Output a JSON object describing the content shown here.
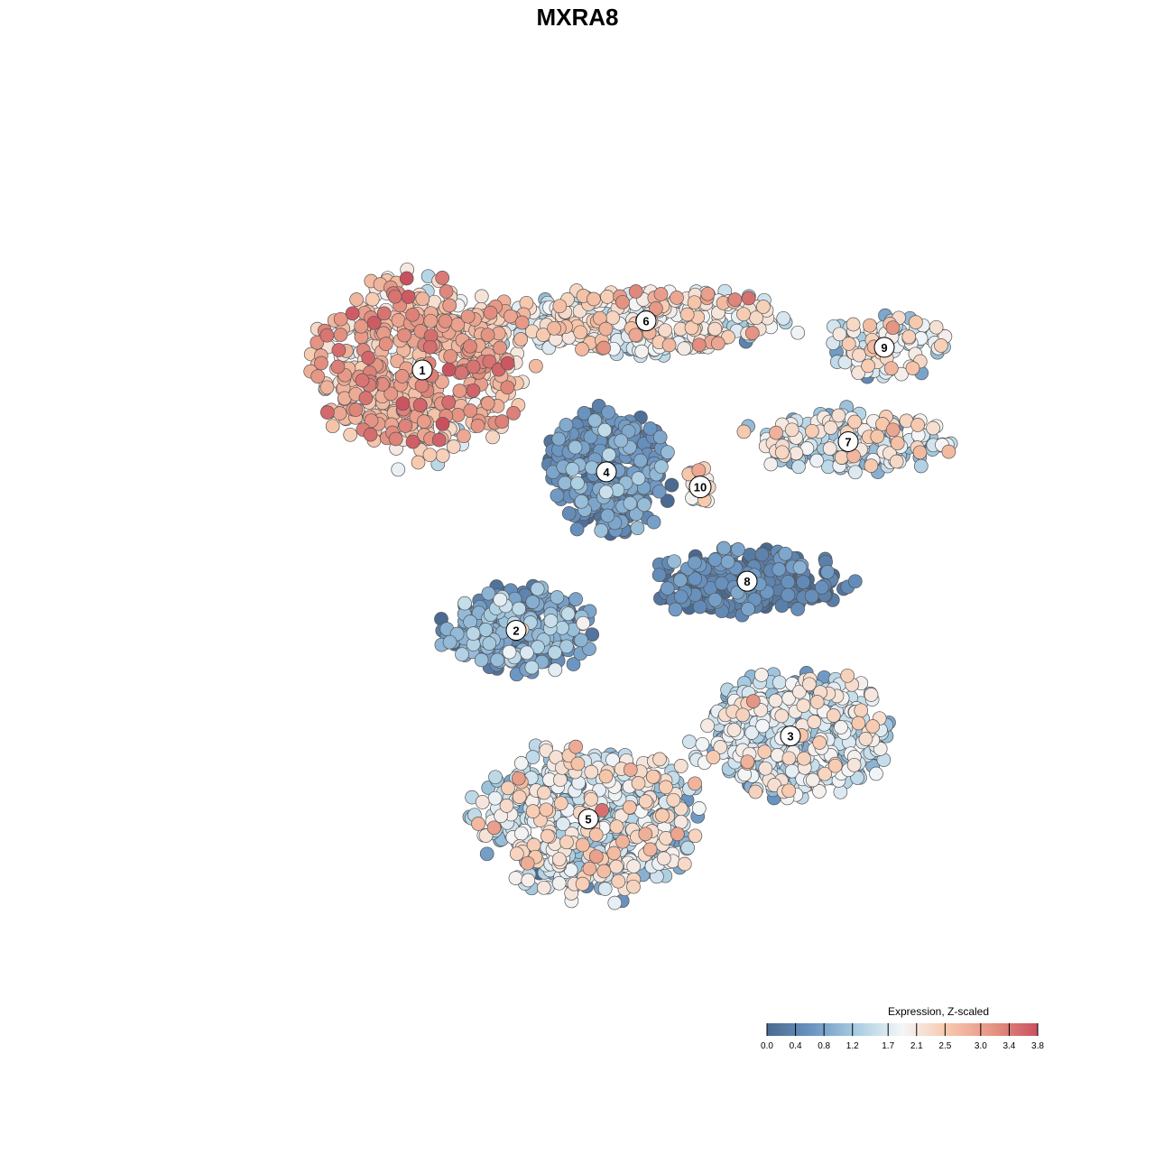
{
  "chart_data": {
    "type": "scatter",
    "title": "MXRA8",
    "xlabel": "",
    "ylabel": "",
    "grid": false,
    "axes_visible": false,
    "point_outline": "#555555",
    "color_scale": {
      "title": "Expression, Z-scaled",
      "min": 0.0,
      "max": 3.8,
      "ticks": [
        0.0,
        0.4,
        0.8,
        1.2,
        1.7,
        2.1,
        2.5,
        3.0,
        3.4,
        3.8
      ],
      "tick_labels": [
        "0.0",
        "0.4",
        "0.8",
        "1.2",
        "1.7",
        "2.1",
        "2.5",
        "3.0",
        "3.4",
        "3.8"
      ],
      "stops": [
        "#4a6a91",
        "#6b95c2",
        "#a9cee2",
        "#f4f6f8",
        "#f7c8ac",
        "#e59483",
        "#c9515f"
      ],
      "placement": "bottom-right"
    },
    "clusters": [
      {
        "label": "1",
        "x": -2.4,
        "y": 2.75,
        "rx": 1.45,
        "ry": 1.2,
        "n": 520,
        "mean": 2.6,
        "sd": 0.55
      },
      {
        "label": "2",
        "x": -1.1,
        "y": -0.7,
        "rx": 1.1,
        "ry": 0.55,
        "n": 260,
        "mean": 0.7,
        "sd": 0.45
      },
      {
        "label": "3",
        "x": 2.7,
        "y": -2.1,
        "rx": 1.3,
        "ry": 0.85,
        "n": 420,
        "mean": 1.5,
        "sd": 0.5
      },
      {
        "label": "4",
        "x": 0.15,
        "y": 1.4,
        "rx": 0.85,
        "ry": 0.8,
        "n": 330,
        "mean": 0.45,
        "sd": 0.35
      },
      {
        "label": "5",
        "x": -0.1,
        "y": -3.2,
        "rx": 1.5,
        "ry": 1.0,
        "n": 560,
        "mean": 1.6,
        "sd": 0.6
      },
      {
        "label": "6",
        "x": 0.7,
        "y": 3.4,
        "rx": 2.0,
        "ry": 0.45,
        "n": 330,
        "mean": 1.9,
        "sd": 0.55
      },
      {
        "label": "7",
        "x": 3.5,
        "y": 1.8,
        "rx": 1.4,
        "ry": 0.4,
        "n": 200,
        "mean": 1.6,
        "sd": 0.55
      },
      {
        "label": "8",
        "x": 2.1,
        "y": -0.05,
        "rx": 1.35,
        "ry": 0.45,
        "n": 260,
        "mean": 0.3,
        "sd": 0.3
      },
      {
        "label": "9",
        "x": 4.0,
        "y": 3.05,
        "rx": 0.95,
        "ry": 0.4,
        "n": 110,
        "mean": 1.7,
        "sd": 0.55
      },
      {
        "label": "10",
        "x": 1.45,
        "y": 1.2,
        "rx": 0.18,
        "ry": 0.3,
        "n": 18,
        "mean": 1.9,
        "sd": 0.45
      }
    ],
    "xlim": [
      -6.0,
      6.0
    ],
    "ylim": [
      -5.5,
      5.5
    ]
  }
}
